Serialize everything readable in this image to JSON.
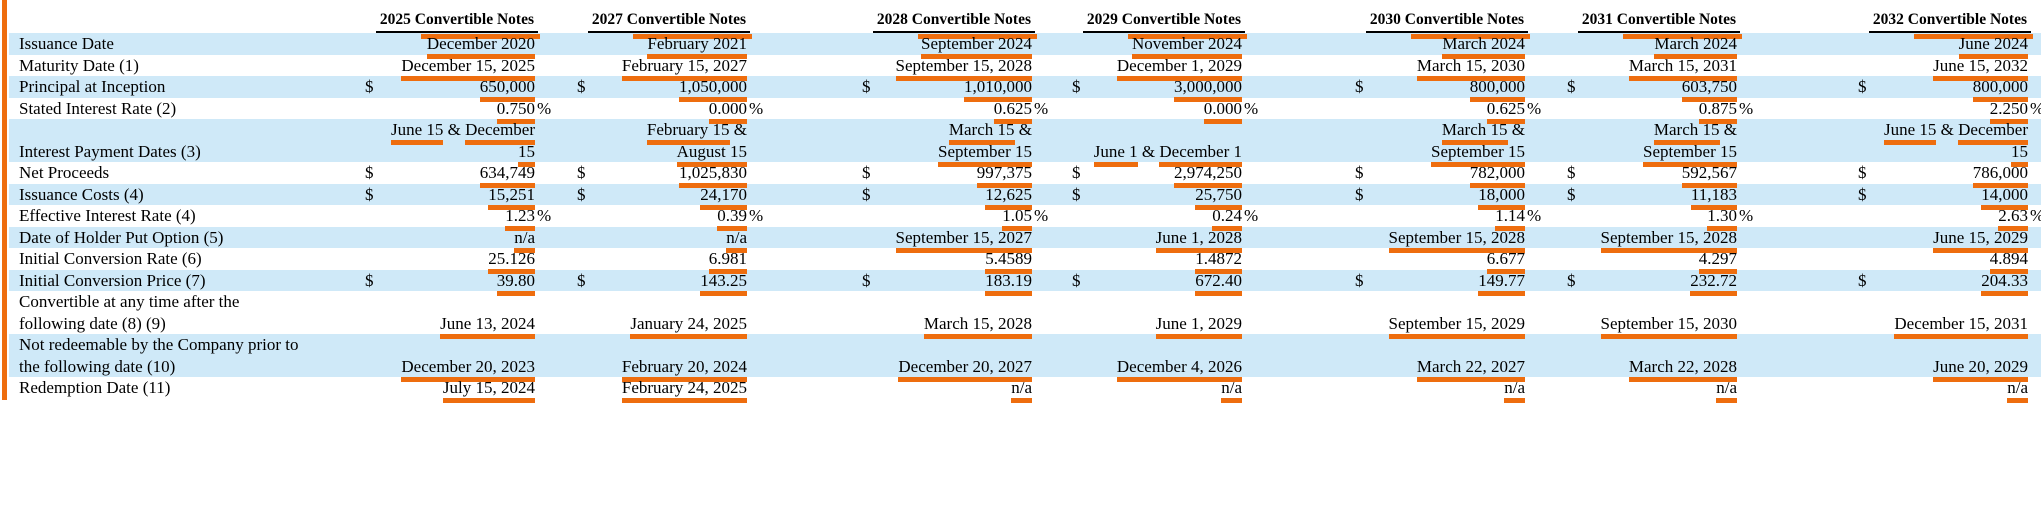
{
  "accent": {
    "orange_marker": "#ee6d0e",
    "stripe_blue": "#cfe9f8",
    "header_rule": "#000000"
  },
  "table": {
    "columns": [
      "2025 Convertible Notes",
      "2027 Convertible Notes",
      "2028 Convertible Notes",
      "2029 Convertible Notes",
      "2030 Convertible Notes",
      "2031 Convertible Notes",
      "2032 Convertible Notes"
    ],
    "rows": [
      {
        "label": "Issuance Date",
        "values": [
          "December 2020",
          "February 2021",
          "September 2024",
          "November 2024",
          "March 2024",
          "March 2024",
          "June 2024"
        ]
      },
      {
        "label": "Maturity Date (1)",
        "values": [
          "December 15, 2025",
          "February 15, 2027",
          "September 15, 2028",
          "December 1, 2029",
          "March 15, 2030",
          "March 15, 2031",
          "June 15, 2032"
        ]
      },
      {
        "label": "Principal at Inception",
        "prefix": "$",
        "values": [
          "650,000",
          "1,050,000",
          "1,010,000",
          "3,000,000",
          "800,000",
          "603,750",
          "800,000"
        ]
      },
      {
        "label": "Stated Interest Rate (2)",
        "suffix": "%",
        "values": [
          "0.750",
          "0.000",
          "0.625",
          "0.000",
          "0.625",
          "0.875",
          "2.250"
        ]
      },
      {
        "label": "Interest Payment Dates (3)",
        "values": [
          "June 15 & December\n15",
          "February 15 &\nAugust 15",
          "March 15 &\nSeptember 15",
          "June 1 & December 1",
          "March 15 &\nSeptember 15",
          "March 15 &\nSeptember 15",
          "June 15 & December\n15"
        ]
      },
      {
        "label": "Net Proceeds",
        "prefix": "$",
        "values": [
          "634,749",
          "1,025,830",
          "997,375",
          "2,974,250",
          "782,000",
          "592,567",
          "786,000"
        ]
      },
      {
        "label": "Issuance Costs (4)",
        "prefix": "$",
        "values": [
          "15,251",
          "24,170",
          "12,625",
          "25,750",
          "18,000",
          "11,183",
          "14,000"
        ]
      },
      {
        "label": "Effective Interest Rate (4)",
        "suffix": "%",
        "values": [
          "1.23",
          "0.39",
          "1.05",
          "0.24",
          "1.14",
          "1.30",
          "2.63"
        ]
      },
      {
        "label": "Date of Holder Put Option (5)",
        "values": [
          "n/a",
          "n/a",
          "September 15, 2027",
          "June 1, 2028",
          "September 15, 2028",
          "September 15, 2028",
          "June 15, 2029"
        ]
      },
      {
        "label": "Initial Conversion Rate (6)",
        "values": [
          "25.126",
          "6.981",
          "5.4589",
          "1.4872",
          "6.677",
          "4.297",
          "4.894"
        ]
      },
      {
        "label": "Initial Conversion Price (7)",
        "prefix": "$",
        "values": [
          "39.80",
          "143.25",
          "183.19",
          "672.40",
          "149.77",
          "232.72",
          "204.33"
        ]
      },
      {
        "label": "Convertible at any time after the\nfollowing date (8) (9)",
        "values": [
          "June 13, 2024",
          "January 24, 2025",
          "March 15, 2028",
          "June 1, 2029",
          "September 15, 2029",
          "September 15, 2030",
          "December 15, 2031"
        ]
      },
      {
        "label": "Not redeemable by the Company prior to\nthe following date (10)",
        "values": [
          "December 20, 2023",
          "February 20, 2024",
          "December 20, 2027",
          "December 4, 2026",
          "March 22, 2027",
          "March 22, 2028",
          "June 20, 2029"
        ]
      },
      {
        "label": "Redemption Date (11)",
        "values": [
          "July 15, 2024",
          "February 24, 2025",
          "n/a",
          "n/a",
          "n/a",
          "n/a",
          "n/a"
        ]
      }
    ]
  }
}
